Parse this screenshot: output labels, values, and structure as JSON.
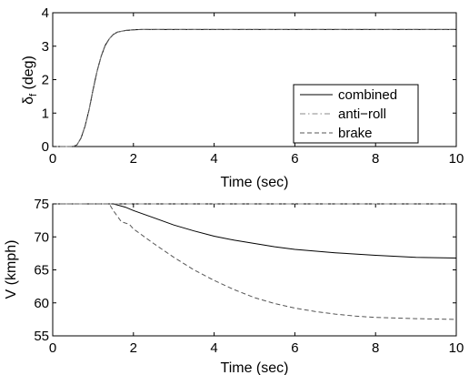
{
  "chart_data": [
    {
      "type": "line",
      "xlabel": "Time (sec)",
      "ylabel": {
        "main": "δ",
        "sub": "f",
        "rest": " (deg)"
      },
      "xlim": [
        0,
        10
      ],
      "ylim": [
        0,
        4
      ],
      "xticks": [
        "0",
        "2",
        "4",
        "6",
        "8",
        "10"
      ],
      "yticks": [
        "0",
        "1",
        "2",
        "3",
        "4"
      ],
      "grid": false,
      "legend": {
        "placement": "bottom-right",
        "entries": [
          "combined",
          "anti−roll",
          "brake"
        ]
      },
      "series": [
        {
          "name": "combined",
          "style": "solid",
          "color": "#000000",
          "x": [
            0,
            0.5,
            0.6,
            0.7,
            0.8,
            0.9,
            1.0,
            1.1,
            1.2,
            1.3,
            1.4,
            1.5,
            1.6,
            1.8,
            2.0,
            2.2,
            2.5,
            3,
            10
          ],
          "y": [
            0,
            0,
            0.05,
            0.25,
            0.6,
            1.1,
            1.7,
            2.25,
            2.7,
            3.02,
            3.22,
            3.35,
            3.42,
            3.47,
            3.49,
            3.5,
            3.5,
            3.5,
            3.5
          ]
        },
        {
          "name": "anti−roll",
          "style": "dashdot",
          "color": "#888888",
          "x": [
            0,
            0.5,
            0.6,
            0.7,
            0.8,
            0.9,
            1.0,
            1.1,
            1.2,
            1.3,
            1.4,
            1.5,
            1.6,
            1.8,
            2.0,
            2.2,
            2.5,
            3,
            10
          ],
          "y": [
            0,
            0,
            0.05,
            0.25,
            0.6,
            1.1,
            1.7,
            2.25,
            2.7,
            3.02,
            3.22,
            3.35,
            3.42,
            3.47,
            3.49,
            3.5,
            3.5,
            3.5,
            3.5
          ]
        },
        {
          "name": "brake",
          "style": "dashed",
          "color": "#555555",
          "x": [
            0,
            0.5,
            0.6,
            0.7,
            0.8,
            0.9,
            1.0,
            1.1,
            1.2,
            1.3,
            1.4,
            1.5,
            1.6,
            1.8,
            2.0,
            2.2,
            2.5,
            3,
            10
          ],
          "y": [
            0,
            0,
            0.05,
            0.25,
            0.6,
            1.1,
            1.7,
            2.25,
            2.7,
            3.02,
            3.22,
            3.35,
            3.42,
            3.47,
            3.49,
            3.5,
            3.5,
            3.5,
            3.5
          ]
        }
      ]
    },
    {
      "type": "line",
      "xlabel": "Time (sec)",
      "ylabel": "V (kmph)",
      "xlim": [
        0,
        10
      ],
      "ylim": [
        55,
        75
      ],
      "xticks": [
        "0",
        "2",
        "4",
        "6",
        "8",
        "10"
      ],
      "yticks": [
        "55",
        "60",
        "65",
        "70",
        "75"
      ],
      "grid": false,
      "series": [
        {
          "name": "combined",
          "style": "solid",
          "color": "#000000",
          "x": [
            0,
            1.5,
            1.8,
            2.0,
            2.5,
            3,
            3.5,
            4,
            4.5,
            5,
            5.5,
            6,
            7,
            8,
            9,
            10
          ],
          "y": [
            75,
            75,
            74.5,
            74,
            72.9,
            71.8,
            70.9,
            70.1,
            69.5,
            69.0,
            68.5,
            68.1,
            67.6,
            67.2,
            66.9,
            66.8
          ]
        },
        {
          "name": "anti−roll",
          "style": "dashdot",
          "color": "#888888",
          "x": [
            0,
            10
          ],
          "y": [
            75,
            75
          ]
        },
        {
          "name": "brake",
          "style": "dashed",
          "color": "#555555",
          "x": [
            0,
            1.4,
            1.5,
            1.7,
            1.9,
            2.0,
            2.5,
            3,
            3.5,
            4,
            4.5,
            5,
            5.5,
            6,
            6.5,
            7,
            7.5,
            8,
            9,
            10
          ],
          "y": [
            75,
            75,
            74,
            72.3,
            71.9,
            71.2,
            69.0,
            66.9,
            65.0,
            63.4,
            62.0,
            60.8,
            59.9,
            59.2,
            58.7,
            58.3,
            58.0,
            57.8,
            57.6,
            57.5
          ]
        }
      ]
    }
  ]
}
